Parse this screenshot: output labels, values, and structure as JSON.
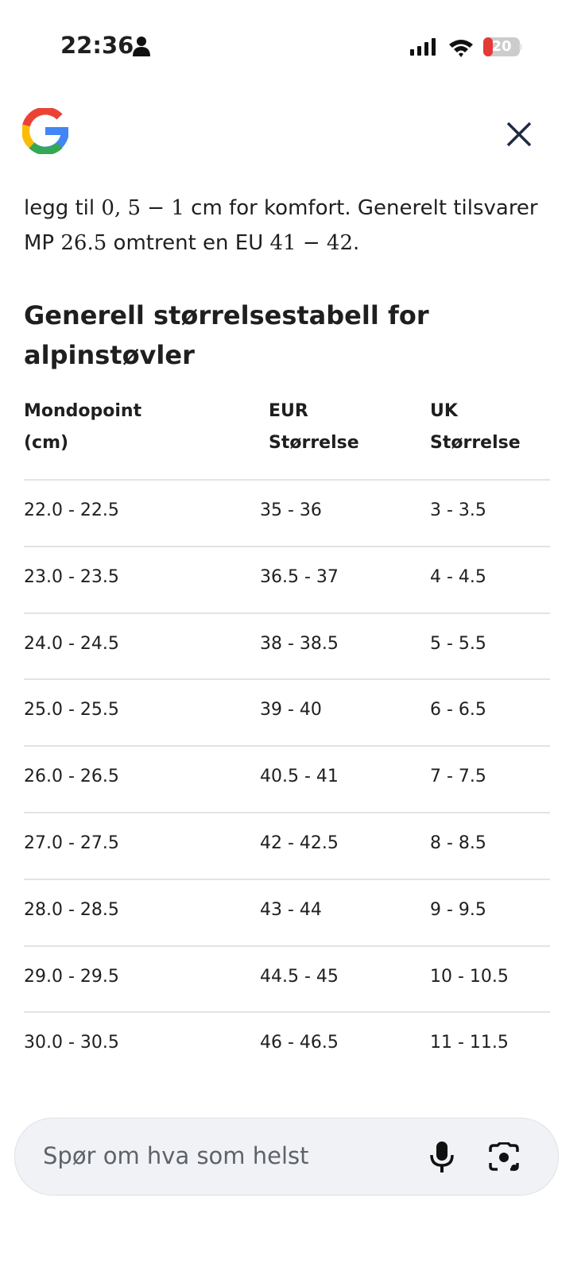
{
  "status_bar": {
    "time": "22:36",
    "battery": "20"
  },
  "paragraph": {
    "lines": [
      [
        "legg til ",
        "0, 5 − 1",
        " cm for komfort. Generelt tilsvarer"
      ],
      [
        "MP ",
        "26.5",
        " omtrent en EU ",
        "41 − 42",
        "."
      ]
    ]
  },
  "heading": "Generell størrelsestabell for alpinstøvler",
  "table": {
    "headers": [
      "Mondopoint (cm)",
      "EUR Størrelse",
      "UK Størrelse"
    ],
    "rows": [
      [
        "22.0 - 22.5",
        "35 - 36",
        "3 - 3.5"
      ],
      [
        "23.0 - 23.5",
        "36.5 - 37",
        "4 - 4.5"
      ],
      [
        "24.0 - 24.5",
        "38 - 38.5",
        "5 - 5.5"
      ],
      [
        "25.0 - 25.5",
        "39 - 40",
        "6 - 6.5"
      ],
      [
        "26.0 - 26.5",
        "40.5 - 41",
        "7 - 7.5"
      ],
      [
        "27.0 - 27.5",
        "42 - 42.5",
        "8 - 8.5"
      ],
      [
        "28.0 - 28.5",
        "43 - 44",
        "9 - 9.5"
      ],
      [
        "29.0 - 29.5",
        "44.5 - 45",
        "10 - 10.5"
      ],
      [
        "30.0 - 30.5",
        "46 - 46.5",
        "11 - 11.5"
      ]
    ]
  },
  "search": {
    "placeholder": "Spør om hva som helst"
  }
}
